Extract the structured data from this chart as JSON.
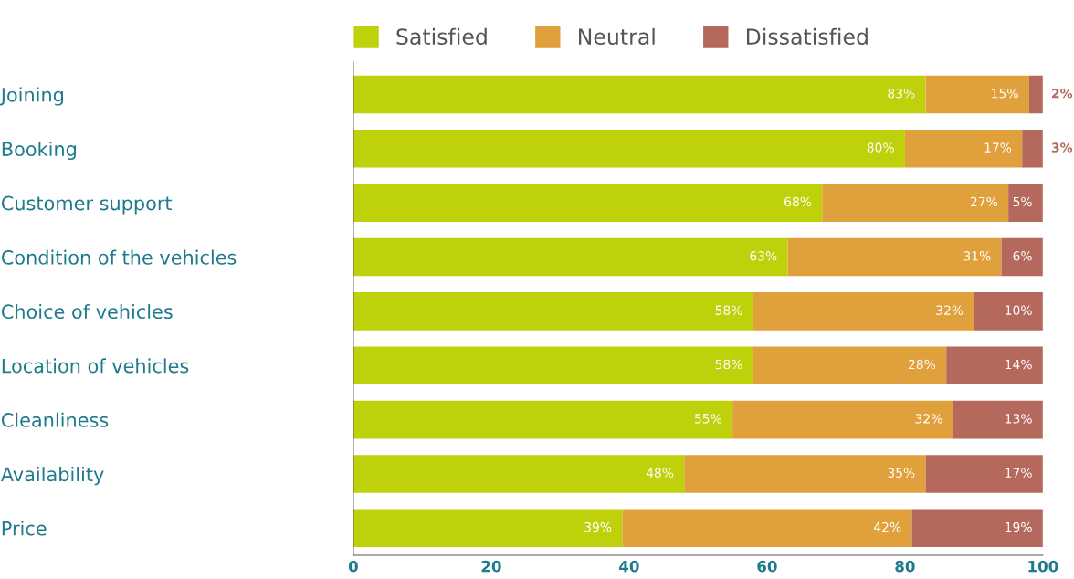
{
  "chart_data": {
    "type": "bar",
    "orientation": "horizontal",
    "stacked": true,
    "legend": "top",
    "grid": false,
    "categories": [
      "Joining",
      "Booking",
      "Customer support",
      "Condition of the vehicles",
      "Choice of vehicles",
      "Location of vehicles",
      "Cleanliness",
      "Availability",
      "Price"
    ],
    "series": [
      {
        "name": "Satisfied",
        "color": "#bfd10a",
        "values": [
          83,
          80,
          68,
          63,
          58,
          58,
          55,
          48,
          39
        ],
        "value_labels": [
          "83%",
          "80%",
          "68%",
          "63%",
          "58%",
          "58%",
          "55%",
          "48%",
          "39%"
        ]
      },
      {
        "name": "Neutral",
        "color": "#e0a03c",
        "values": [
          15,
          17,
          27,
          31,
          32,
          28,
          32,
          35,
          42
        ],
        "value_labels": [
          "15%",
          "17%",
          "27%",
          "31%",
          "32%",
          "28%",
          "32%",
          "35%",
          "42%"
        ]
      },
      {
        "name": "Dissatisfied",
        "color": "#b5685c",
        "values": [
          2,
          3,
          5,
          6,
          10,
          14,
          13,
          17,
          19
        ],
        "value_labels": [
          "2%",
          "3%",
          "5%",
          "6%",
          "10%",
          "14%",
          "13%",
          "17%",
          "19%"
        ]
      }
    ],
    "xlim": [
      0,
      100
    ],
    "xticks": [
      0,
      20,
      40,
      60,
      80,
      100
    ]
  }
}
